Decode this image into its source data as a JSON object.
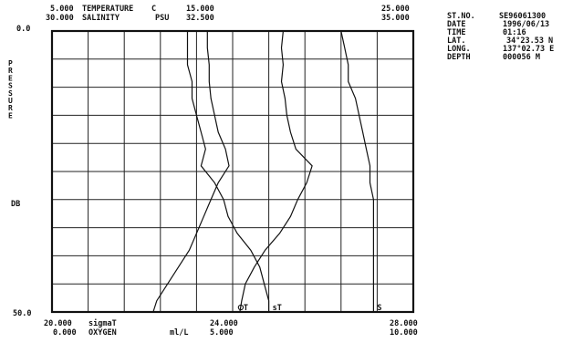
{
  "chart_data": {
    "type": "line",
    "y_axis": {
      "label_letters": [
        "P",
        "R",
        "E",
        "S",
        "S",
        "U",
        "R",
        "E"
      ],
      "label_db": "DB",
      "top": "0.0",
      "bottom": "50.0",
      "range": [
        0,
        50
      ],
      "inverted": true
    },
    "top_axes": [
      {
        "left_val": "5.000",
        "name": "TEMPERATURE",
        "unit": "C",
        "mid_val": "15.000",
        "right_val": "25.000",
        "range": [
          5,
          25
        ]
      },
      {
        "left_val": "30.000",
        "name": "SALINITY",
        "unit": "PSU",
        "mid_val": "32.500",
        "right_val": "35.000",
        "range": [
          30,
          35
        ]
      }
    ],
    "bottom_axes": [
      {
        "left_val": "20.000",
        "name": "sigmaT",
        "unit": "",
        "mid_val": "24.000",
        "right_val": "28.000",
        "range": [
          20,
          28
        ]
      },
      {
        "left_val": "0.000",
        "name": "OXYGEN",
        "unit": "ml/L",
        "mid_val": "5.000",
        "right_val": "10.000",
        "range": [
          0,
          10
        ]
      }
    ],
    "station": [
      {
        "key": "ST.NO.",
        "value": "SE96061300"
      },
      {
        "key": "DATE",
        "value": "1996/06/13"
      },
      {
        "key": "TIME",
        "value": "01:16"
      },
      {
        "key": "LAT.",
        "value": "34°23.53 N"
      },
      {
        "key": "LONG.",
        "value": "137°02.73 E"
      },
      {
        "key": "DEPTH",
        "value": "000056 M"
      }
    ],
    "grid": {
      "vertical_divisions": 10,
      "horizontal_divisions": 10
    },
    "series": [
      {
        "name": "",
        "axis": "temperature",
        "end_label": "T",
        "end_label_prefix": "O",
        "points": [
          [
            0,
            17.8
          ],
          [
            3,
            17.7
          ],
          [
            6,
            17.8
          ],
          [
            9,
            17.7
          ],
          [
            12,
            17.9
          ],
          [
            15,
            18.0
          ],
          [
            18,
            18.2
          ],
          [
            21,
            18.5
          ],
          [
            24,
            19.4
          ],
          [
            27,
            19.1
          ],
          [
            30,
            18.6
          ],
          [
            33,
            18.2
          ],
          [
            36,
            17.6
          ],
          [
            39,
            16.8
          ],
          [
            42,
            16.2
          ],
          [
            45,
            15.7
          ],
          [
            48,
            15.5
          ],
          [
            50,
            15.4
          ]
        ]
      },
      {
        "name": "",
        "axis": "salinity",
        "end_label": "S",
        "points": [
          [
            0,
            34.0
          ],
          [
            3,
            34.05
          ],
          [
            6,
            34.1
          ],
          [
            9,
            34.1
          ],
          [
            12,
            34.2
          ],
          [
            15,
            34.25
          ],
          [
            18,
            34.3
          ],
          [
            21,
            34.35
          ],
          [
            24,
            34.4
          ],
          [
            27,
            34.4
          ],
          [
            30,
            34.45
          ],
          [
            33,
            34.45
          ],
          [
            36,
            34.45
          ],
          [
            39,
            34.45
          ],
          [
            42,
            34.45
          ],
          [
            45,
            34.45
          ],
          [
            48,
            34.45
          ],
          [
            50,
            34.45
          ]
        ]
      },
      {
        "name": "",
        "axis": "sigmaT",
        "end_label": "sT",
        "points": [
          [
            0,
            23.0
          ],
          [
            3,
            23.0
          ],
          [
            6,
            23.0
          ],
          [
            9,
            23.1
          ],
          [
            12,
            23.1
          ],
          [
            15,
            23.2
          ],
          [
            18,
            23.3
          ],
          [
            21,
            23.4
          ],
          [
            24,
            23.3
          ],
          [
            27,
            23.6
          ],
          [
            30,
            23.8
          ],
          [
            33,
            23.9
          ],
          [
            36,
            24.1
          ],
          [
            39,
            24.4
          ],
          [
            42,
            24.6
          ],
          [
            45,
            24.7
          ],
          [
            48,
            24.8
          ],
          [
            50,
            24.8
          ]
        ]
      },
      {
        "name": "",
        "axis": "oxygen",
        "end_label": "",
        "points": [
          [
            0,
            4.3
          ],
          [
            3,
            4.3
          ],
          [
            6,
            4.35
          ],
          [
            9,
            4.35
          ],
          [
            12,
            4.4
          ],
          [
            15,
            4.5
          ],
          [
            18,
            4.6
          ],
          [
            21,
            4.8
          ],
          [
            24,
            4.9
          ],
          [
            27,
            4.6
          ],
          [
            30,
            4.4
          ],
          [
            33,
            4.2
          ],
          [
            36,
            4.0
          ],
          [
            39,
            3.8
          ],
          [
            42,
            3.5
          ],
          [
            45,
            3.2
          ],
          [
            48,
            2.9
          ],
          [
            50,
            2.8
          ]
        ]
      }
    ]
  }
}
